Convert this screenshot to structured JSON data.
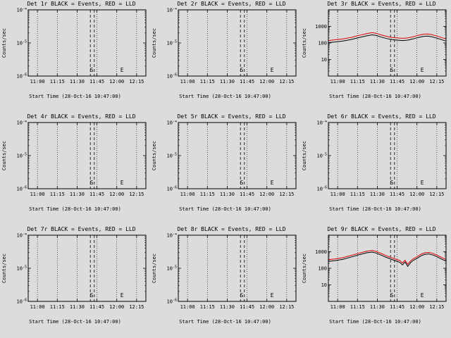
{
  "page": {
    "background": "#dcdcdc",
    "axis_color": "#000000"
  },
  "chart_data": [
    {
      "type": "line",
      "title": "Det 1r BLACK = Events, RED = LLD",
      "ylabel": "Counts/sec",
      "xlabel": "Start Time (28-Oct-16 10:47:00)",
      "xticks": [
        "11:00",
        "11:15",
        "11:30",
        "11:45",
        "12:00",
        "12:15"
      ],
      "xlim": [
        "10:53",
        "12:22"
      ],
      "ylim": [
        1e-06,
        0.0001
      ],
      "yticks": [
        {
          "value": 0.0001,
          "label": "10",
          "exp": "-4"
        },
        {
          "value": 1e-05,
          "label": "10",
          "exp": "-5"
        },
        {
          "value": 1e-06,
          "label": "10",
          "exp": "-6"
        }
      ],
      "markers": {
        "dashed_times": [
          "11:40",
          "11:43"
        ],
        "s_time": "11:41",
        "start_label": "S",
        "e_time": "12:04",
        "end_label": "E"
      },
      "series": []
    },
    {
      "type": "line",
      "title": "Det 2r BLACK = Events, RED = LLD",
      "ylabel": "Counts/sec",
      "xlabel": "Start Time (28-Oct-16 10:47:00)",
      "xticks": [
        "11:00",
        "11:15",
        "11:30",
        "11:45",
        "12:00",
        "12:15"
      ],
      "xlim": [
        "10:53",
        "12:22"
      ],
      "ylim": [
        1e-06,
        0.0001
      ],
      "yticks": [
        {
          "value": 0.0001,
          "label": "10",
          "exp": "-4"
        },
        {
          "value": 1e-05,
          "label": "10",
          "exp": "-5"
        },
        {
          "value": 1e-06,
          "label": "10",
          "exp": "-6"
        }
      ],
      "markers": {
        "dashed_times": [
          "11:40",
          "11:43"
        ],
        "s_time": "11:41",
        "start_label": "S",
        "e_time": "12:04",
        "end_label": "E"
      },
      "series": []
    },
    {
      "type": "line",
      "title": "Det 3r BLACK = Events, RED = LLD",
      "ylabel": "Counts/sec",
      "xlabel": "Start Time (28-Oct-16 10:47:00)",
      "xticks": [
        "11:00",
        "11:15",
        "11:30",
        "11:45",
        "12:00",
        "12:15"
      ],
      "xlim": [
        "10:53",
        "12:22"
      ],
      "ylim": [
        1,
        10000
      ],
      "yticks": [
        {
          "value": 1000,
          "label": "1000"
        },
        {
          "value": 100,
          "label": "100"
        },
        {
          "value": 10,
          "label": "10"
        }
      ],
      "markers": {
        "dashed_times": [
          "11:40",
          "11:43"
        ],
        "s_time": "11:41",
        "start_label": "S",
        "e_time": "12:04",
        "end_label": "E"
      },
      "series": [
        {
          "name": "events",
          "color": "#000000",
          "points": [
            [
              653,
              105
            ],
            [
              658,
              115
            ],
            [
              664,
              130
            ],
            [
              670,
              160
            ],
            [
              676,
              210
            ],
            [
              682,
              270
            ],
            [
              686,
              310
            ],
            [
              689,
              285
            ],
            [
              693,
              225
            ],
            [
              697,
              185
            ],
            [
              701,
              160
            ],
            [
              705,
              148
            ],
            [
              709,
              140
            ],
            [
              713,
              148
            ],
            [
              717,
              175
            ],
            [
              721,
              215
            ],
            [
              725,
              250
            ],
            [
              728,
              258
            ],
            [
              731,
              240
            ],
            [
              734,
              205
            ],
            [
              737,
              175
            ],
            [
              740,
              145
            ],
            [
              742,
              130
            ]
          ]
        },
        {
          "name": "lld",
          "color": "#dd0000",
          "points": [
            [
              653,
              140
            ],
            [
              658,
              155
            ],
            [
              664,
              175
            ],
            [
              670,
              215
            ],
            [
              676,
              285
            ],
            [
              682,
              365
            ],
            [
              686,
              420
            ],
            [
              689,
              385
            ],
            [
              693,
              305
            ],
            [
              697,
              250
            ],
            [
              701,
              215
            ],
            [
              705,
              200
            ],
            [
              709,
              190
            ],
            [
              713,
              200
            ],
            [
              717,
              235
            ],
            [
              721,
              290
            ],
            [
              725,
              340
            ],
            [
              728,
              350
            ],
            [
              731,
              325
            ],
            [
              734,
              275
            ],
            [
              737,
              235
            ],
            [
              740,
              195
            ],
            [
              742,
              175
            ]
          ]
        }
      ]
    },
    {
      "type": "line",
      "title": "Det 4r BLACK = Events, RED = LLD",
      "ylabel": "Counts/sec",
      "xlabel": "Start Time (28-Oct-16 10:47:00)",
      "xticks": [
        "11:00",
        "11:15",
        "11:30",
        "11:45",
        "12:00",
        "12:15"
      ],
      "xlim": [
        "10:53",
        "12:22"
      ],
      "ylim": [
        1e-06,
        0.0001
      ],
      "yticks": [
        {
          "value": 0.0001,
          "label": "10",
          "exp": "-4"
        },
        {
          "value": 1e-05,
          "label": "10",
          "exp": "-5"
        },
        {
          "value": 1e-06,
          "label": "10",
          "exp": "-6"
        }
      ],
      "markers": {
        "dashed_times": [
          "11:40",
          "11:43"
        ],
        "s_time": "11:41",
        "start_label": "S",
        "e_time": "12:04",
        "end_label": "E"
      },
      "series": []
    },
    {
      "type": "line",
      "title": "Det 5r BLACK = Events, RED = LLD",
      "ylabel": "Counts/sec",
      "xlabel": "Start Time (28-Oct-16 10:47:00)",
      "xticks": [
        "11:00",
        "11:15",
        "11:30",
        "11:45",
        "12:00",
        "12:15"
      ],
      "xlim": [
        "10:53",
        "12:22"
      ],
      "ylim": [
        1e-06,
        0.0001
      ],
      "yticks": [
        {
          "value": 0.0001,
          "label": "10",
          "exp": "-4"
        },
        {
          "value": 1e-05,
          "label": "10",
          "exp": "-5"
        },
        {
          "value": 1e-06,
          "label": "10",
          "exp": "-6"
        }
      ],
      "markers": {
        "dashed_times": [
          "11:40",
          "11:43"
        ],
        "s_time": "11:41",
        "start_label": "S",
        "e_time": "12:04",
        "end_label": "E"
      },
      "series": []
    },
    {
      "type": "line",
      "title": "Det 6r BLACK = Events, RED = LLD",
      "ylabel": "Counts/sec",
      "xlabel": "Start Time (28-Oct-16 10:47:00)",
      "xticks": [
        "11:00",
        "11:15",
        "11:30",
        "11:45",
        "12:00",
        "12:15"
      ],
      "xlim": [
        "10:53",
        "12:22"
      ],
      "ylim": [
        1e-06,
        0.0001
      ],
      "yticks": [
        {
          "value": 0.0001,
          "label": "10",
          "exp": "-4"
        },
        {
          "value": 1e-05,
          "label": "10",
          "exp": "-5"
        },
        {
          "value": 1e-06,
          "label": "10",
          "exp": "-6"
        }
      ],
      "markers": {
        "dashed_times": [
          "11:40",
          "11:43"
        ],
        "s_time": "11:41",
        "start_label": "S",
        "e_time": "12:04",
        "end_label": "E"
      },
      "series": []
    },
    {
      "type": "line",
      "title": "Det 7r BLACK = Events, RED = LLD",
      "ylabel": "Counts/sec",
      "xlabel": "Start Time (28-Oct-16 10:47:00)",
      "xticks": [
        "11:00",
        "11:15",
        "11:30",
        "11:45",
        "12:00",
        "12:15"
      ],
      "xlim": [
        "10:53",
        "12:22"
      ],
      "ylim": [
        1e-06,
        0.0001
      ],
      "yticks": [
        {
          "value": 0.0001,
          "label": "10",
          "exp": "-4"
        },
        {
          "value": 1e-05,
          "label": "10",
          "exp": "-5"
        },
        {
          "value": 1e-06,
          "label": "10",
          "exp": "-6"
        }
      ],
      "markers": {
        "dashed_times": [
          "11:40",
          "11:43"
        ],
        "s_time": "11:41",
        "start_label": "S",
        "e_time": "12:04",
        "end_label": "E"
      },
      "series": []
    },
    {
      "type": "line",
      "title": "Det 8r BLACK = Events, RED = LLD",
      "ylabel": "Counts/sec",
      "xlabel": "Start Time (28-Oct-16 10:47:00)",
      "xticks": [
        "11:00",
        "11:15",
        "11:30",
        "11:45",
        "12:00",
        "12:15"
      ],
      "xlim": [
        "10:53",
        "12:22"
      ],
      "ylim": [
        1e-06,
        0.0001
      ],
      "yticks": [
        {
          "value": 0.0001,
          "label": "10",
          "exp": "-4"
        },
        {
          "value": 1e-05,
          "label": "10",
          "exp": "-5"
        },
        {
          "value": 1e-06,
          "label": "10",
          "exp": "-6"
        }
      ],
      "markers": {
        "dashed_times": [
          "11:40",
          "11:43"
        ],
        "s_time": "11:41",
        "start_label": "S",
        "e_time": "12:04",
        "end_label": "E"
      },
      "series": []
    },
    {
      "type": "line",
      "title": "Det 9r BLACK = Events, RED = LLD",
      "ylabel": "Counts/sec",
      "xlabel": "Start Time (28-Oct-16 10:47:00)",
      "xticks": [
        "11:00",
        "11:15",
        "11:30",
        "11:45",
        "12:00",
        "12:15"
      ],
      "xlim": [
        "10:53",
        "12:22"
      ],
      "ylim": [
        1,
        10000
      ],
      "yticks": [
        {
          "value": 1000,
          "label": "1000"
        },
        {
          "value": 100,
          "label": "100"
        },
        {
          "value": 10,
          "label": "10"
        }
      ],
      "markers": {
        "dashed_times": [
          "11:40",
          "11:43"
        ],
        "s_time": "11:41",
        "start_label": "S",
        "e_time": "12:04",
        "end_label": "E"
      },
      "series": [
        {
          "name": "events",
          "color": "#000000",
          "points": [
            [
              653,
              260
            ],
            [
              658,
              290
            ],
            [
              664,
              350
            ],
            [
              670,
              470
            ],
            [
              676,
              650
            ],
            [
              682,
              860
            ],
            [
              686,
              950
            ],
            [
              689,
              840
            ],
            [
              693,
              620
            ],
            [
              697,
              450
            ],
            [
              701,
              340
            ],
            [
              704,
              280
            ],
            [
              707,
              230
            ],
            [
              709,
              160
            ],
            [
              711,
              240
            ],
            [
              713,
              130
            ],
            [
              715,
              210
            ],
            [
              717,
              290
            ],
            [
              720,
              400
            ],
            [
              723,
              560
            ],
            [
              726,
              700
            ],
            [
              729,
              730
            ],
            [
              732,
              640
            ],
            [
              735,
              500
            ],
            [
              738,
              380
            ],
            [
              741,
              290
            ],
            [
              742,
              270
            ]
          ]
        },
        {
          "name": "lld",
          "color": "#dd0000",
          "points": [
            [
              653,
              330
            ],
            [
              658,
              365
            ],
            [
              664,
              440
            ],
            [
              670,
              590
            ],
            [
              676,
              810
            ],
            [
              682,
              1070
            ],
            [
              686,
              1180
            ],
            [
              689,
              1050
            ],
            [
              693,
              780
            ],
            [
              697,
              565
            ],
            [
              701,
              430
            ],
            [
              704,
              355
            ],
            [
              707,
              295
            ],
            [
              709,
              210
            ],
            [
              711,
              305
            ],
            [
              713,
              175
            ],
            [
              715,
              270
            ],
            [
              717,
              365
            ],
            [
              720,
              500
            ],
            [
              723,
              700
            ],
            [
              726,
              870
            ],
            [
              729,
              910
            ],
            [
              732,
              800
            ],
            [
              735,
              625
            ],
            [
              738,
              480
            ],
            [
              741,
              365
            ],
            [
              742,
              340
            ]
          ]
        }
      ]
    }
  ]
}
